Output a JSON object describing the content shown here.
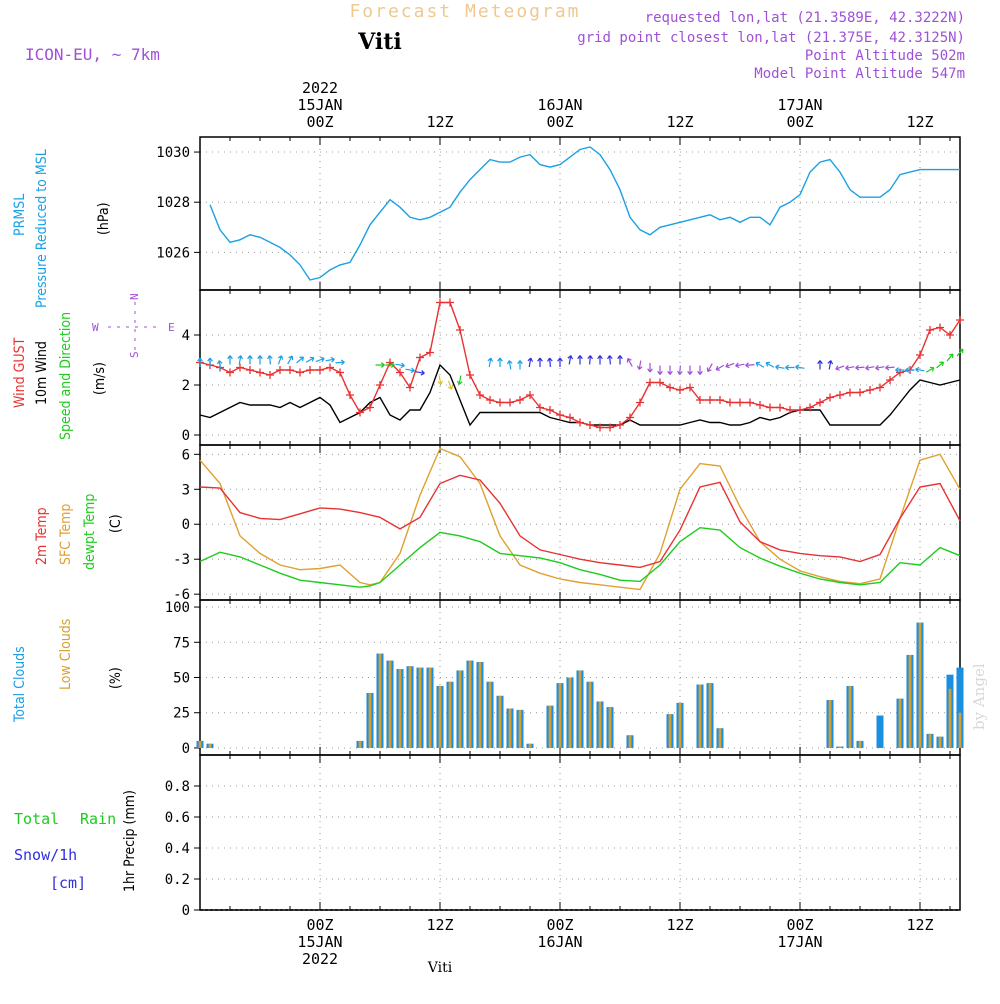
{
  "header": {
    "app_title": "Forecast Meteogram",
    "station": "Viti",
    "model": "ICON-EU, ~ 7km",
    "requested": "requested lon,lat (21.3589E, 42.3222N)",
    "gridpoint": "grid point closest lon,lat (21.375E, 42.3125N)",
    "point_alt": "Point Altitude 502m",
    "model_alt": "Model Point Altitude 547m"
  },
  "footer": {
    "station": "Viti",
    "credit": "by Angel"
  },
  "colors": {
    "pressure": "#1aa0e6",
    "gust": "#e83232",
    "wind": "#000000",
    "wind_label": "#1ecc1e",
    "temp2m": "#e83232",
    "sfc": "#e0a030",
    "dewpt": "#1ecc1e",
    "total_cloud": "#1a8ee0",
    "low_cloud": "#d6a030",
    "rain": "#1ecc1e",
    "snow": "#3030e0",
    "violet": "#a050d8"
  },
  "time_axis": {
    "top_labels": [
      {
        "t": 12,
        "l1": "2022",
        "l2": "15JAN",
        "l3": "00Z"
      },
      {
        "t": 24,
        "l1": "",
        "l2": "",
        "l3": "12Z"
      },
      {
        "t": 36,
        "l1": "",
        "l2": "16JAN",
        "l3": "00Z"
      },
      {
        "t": 48,
        "l1": "",
        "l2": "",
        "l3": "12Z"
      },
      {
        "t": 60,
        "l1": "",
        "l2": "17JAN",
        "l3": "00Z"
      },
      {
        "t": 72,
        "l1": "",
        "l2": "",
        "l3": "12Z"
      }
    ],
    "bottom_labels": [
      {
        "t": 12,
        "l1": "00Z",
        "l2": "15JAN",
        "l3": "2022"
      },
      {
        "t": 24,
        "l1": "12Z",
        "l2": "",
        "l3": ""
      },
      {
        "t": 36,
        "l1": "00Z",
        "l2": "16JAN",
        "l3": ""
      },
      {
        "t": 48,
        "l1": "12Z",
        "l2": "",
        "l3": ""
      },
      {
        "t": 60,
        "l1": "00Z",
        "l2": "17JAN",
        "l3": ""
      },
      {
        "t": 72,
        "l1": "12Z",
        "l2": "",
        "l3": ""
      }
    ]
  },
  "panels": {
    "pressure": {
      "labels": [
        "PRMSL",
        "Pressure Reduced to MSL",
        "(hPa)"
      ],
      "yticks": [
        "1026",
        "1028",
        "1030"
      ]
    },
    "wind": {
      "labels": [
        "Wind GUST",
        "10m Wind",
        "Speed and Direction",
        "(m/s)"
      ],
      "yticks": [
        "0",
        "2",
        "4"
      ],
      "compass": {
        "n": "N",
        "s": "S",
        "w": "W",
        "e": "E"
      }
    },
    "temp": {
      "labels": [
        "2m Temp",
        "SFC Temp",
        "dewpt Temp",
        "(C)"
      ],
      "yticks": [
        "-6",
        "-3",
        "0",
        "3",
        "6"
      ]
    },
    "clouds": {
      "labels": [
        "Total Clouds",
        "Low Clouds",
        "(%)"
      ],
      "yticks": [
        "0",
        "25",
        "50",
        "75",
        "100"
      ]
    },
    "precip": {
      "labels": [
        "Total",
        "Rain",
        "Snow/1h",
        "[cm]",
        "1hr Precip (mm)"
      ],
      "yticks": [
        "0",
        "0.2",
        "0.4",
        "0.6",
        "0.8"
      ]
    }
  },
  "chart_data": [
    {
      "type": "line",
      "name_ref": "pressure",
      "x_hours": [
        1,
        2,
        3,
        4,
        5,
        6,
        7,
        8,
        9,
        10,
        11,
        12,
        13,
        14,
        15,
        16,
        17,
        18,
        19,
        20,
        21,
        22,
        23,
        24,
        25,
        26,
        27,
        28,
        29,
        30,
        31,
        32,
        33,
        34,
        35,
        36,
        37,
        38,
        39,
        40,
        41,
        42,
        43,
        44,
        45,
        46,
        47,
        48,
        49,
        50,
        51,
        52,
        53,
        54,
        55,
        56,
        57,
        58,
        59,
        60,
        61,
        62,
        63,
        64,
        65,
        66,
        67,
        68,
        69,
        70,
        71,
        72,
        73,
        74,
        75,
        76
      ],
      "values": [
        1027.9,
        1026.9,
        1026.4,
        1026.5,
        1026.7,
        1026.6,
        1026.4,
        1026.2,
        1025.9,
        1025.5,
        1024.9,
        1025.0,
        1025.3,
        1025.5,
        1025.6,
        1026.3,
        1027.1,
        1027.6,
        1028.1,
        1027.8,
        1027.4,
        1027.3,
        1027.4,
        1027.6,
        1027.8,
        1028.4,
        1028.9,
        1029.3,
        1029.7,
        1029.6,
        1029.6,
        1029.8,
        1029.9,
        1029.5,
        1029.4,
        1029.5,
        1029.8,
        1030.1,
        1030.2,
        1029.9,
        1029.3,
        1028.5,
        1027.4,
        1026.9,
        1026.7,
        1027.0,
        1027.1,
        1027.2,
        1027.3,
        1027.4,
        1027.5,
        1027.3,
        1027.4,
        1027.2,
        1027.4,
        1027.4,
        1027.1,
        1027.8,
        1028.0,
        1028.3,
        1029.2,
        1029.6,
        1029.7,
        1029.2,
        1028.5,
        1028.2,
        1028.2,
        1028.2,
        1028.5,
        1029.1,
        1029.2,
        1029.3,
        1029.3,
        1029.3,
        1029.3,
        1029.3
      ],
      "ylim": [
        1024.5,
        1030.6
      ]
    },
    {
      "type": "line",
      "name_ref": "wind",
      "x_hours": [
        0,
        1,
        2,
        3,
        4,
        5,
        6,
        7,
        8,
        9,
        10,
        11,
        12,
        13,
        14,
        15,
        16,
        17,
        18,
        19,
        20,
        21,
        22,
        23,
        24,
        25,
        26,
        27,
        28,
        29,
        30,
        31,
        32,
        33,
        34,
        35,
        36,
        37,
        38,
        39,
        40,
        41,
        42,
        43,
        44,
        45,
        46,
        47,
        48,
        49,
        50,
        51,
        52,
        53,
        54,
        55,
        56,
        57,
        58,
        59,
        60,
        61,
        62,
        63,
        64,
        65,
        66,
        67,
        68,
        69,
        70,
        71,
        72,
        73,
        74,
        75,
        76
      ],
      "gust": [
        2.9,
        2.8,
        2.7,
        2.5,
        2.7,
        2.6,
        2.5,
        2.4,
        2.6,
        2.6,
        2.5,
        2.6,
        2.6,
        2.7,
        2.5,
        1.6,
        0.9,
        1.1,
        2.0,
        2.9,
        2.5,
        1.9,
        3.1,
        3.3,
        5.3,
        5.3,
        4.2,
        2.4,
        1.6,
        1.4,
        1.3,
        1.3,
        1.4,
        1.6,
        1.1,
        1.0,
        0.8,
        0.7,
        0.5,
        0.4,
        0.3,
        0.3,
        0.4,
        0.7,
        1.3,
        2.1,
        2.1,
        1.9,
        1.8,
        1.9,
        1.4,
        1.4,
        1.4,
        1.3,
        1.3,
        1.3,
        1.2,
        1.1,
        1.1,
        1.0,
        1.0,
        1.1,
        1.3,
        1.5,
        1.6,
        1.7,
        1.7,
        1.8,
        1.9,
        2.2,
        2.5,
        2.6,
        3.2,
        4.2,
        4.3,
        4.0,
        4.6
      ],
      "speed": [
        0.8,
        0.7,
        0.9,
        1.1,
        1.3,
        1.2,
        1.2,
        1.2,
        1.1,
        1.3,
        1.1,
        1.3,
        1.5,
        1.2,
        0.5,
        0.7,
        0.9,
        1.3,
        1.5,
        0.8,
        0.6,
        1.0,
        1.0,
        1.7,
        2.8,
        2.4,
        1.4,
        0.4,
        0.9,
        0.9,
        0.9,
        0.9,
        0.9,
        0.9,
        0.9,
        0.7,
        0.6,
        0.5,
        0.5,
        0.4,
        0.4,
        0.4,
        0.4,
        0.6,
        0.4,
        0.4,
        0.4,
        0.4,
        0.4,
        0.5,
        0.6,
        0.5,
        0.5,
        0.4,
        0.4,
        0.5,
        0.7,
        0.6,
        0.7,
        0.9,
        1.0,
        1.0,
        1.0,
        0.4,
        0.4,
        0.4,
        0.4,
        0.4,
        0.4,
        0.8,
        1.3,
        1.8,
        2.2,
        2.1,
        2.0,
        2.1,
        2.2
      ],
      "ylim": [
        -0.4,
        5.8
      ]
    },
    {
      "type": "line",
      "name_ref": "temperature",
      "x_hours": [
        0,
        2,
        4,
        6,
        8,
        10,
        12,
        14,
        16,
        17,
        18,
        20,
        22,
        24,
        26,
        28,
        30,
        32,
        34,
        36,
        38,
        40,
        42,
        44,
        46,
        48,
        50,
        52,
        54,
        56,
        58,
        60,
        62,
        64,
        66,
        68,
        70,
        72,
        74,
        76
      ],
      "t2m": [
        3.2,
        3.1,
        1.0,
        0.5,
        0.4,
        0.9,
        1.4,
        1.3,
        1.0,
        0.8,
        0.6,
        -0.4,
        0.6,
        3.5,
        4.2,
        3.8,
        1.8,
        -1.0,
        -2.2,
        -2.6,
        -3.0,
        -3.3,
        -3.5,
        -3.7,
        -3.2,
        -0.5,
        3.2,
        3.6,
        0.2,
        -1.5,
        -2.2,
        -2.5,
        -2.7,
        -2.8,
        -3.2,
        -2.6,
        0.5,
        3.2,
        3.5,
        0.3
      ],
      "sfc": [
        5.5,
        3.5,
        -1.0,
        -2.5,
        -3.5,
        -3.9,
        -3.8,
        -3.5,
        -5.0,
        -5.2,
        -5.0,
        -2.5,
        2.5,
        6.5,
        5.8,
        3.5,
        -1.0,
        -3.5,
        -4.2,
        -4.7,
        -5.0,
        -5.2,
        -5.4,
        -5.6,
        -2.5,
        3.0,
        5.2,
        5.0,
        1.5,
        -1.5,
        -3.0,
        -4.0,
        -4.5,
        -4.9,
        -5.1,
        -4.7,
        0.5,
        5.5,
        6.0,
        3.0
      ],
      "dewpt": [
        -3.2,
        -2.4,
        -2.8,
        -3.5,
        -4.2,
        -4.8,
        -5.0,
        -5.2,
        -5.4,
        -5.3,
        -5.0,
        -3.5,
        -2.0,
        -0.7,
        -1.0,
        -1.5,
        -2.5,
        -2.7,
        -2.9,
        -3.3,
        -3.9,
        -4.3,
        -4.8,
        -4.9,
        -3.5,
        -1.5,
        -0.3,
        -0.5,
        -2.0,
        -2.9,
        -3.6,
        -4.2,
        -4.7,
        -5.0,
        -5.2,
        -5.0,
        -3.3,
        -3.5,
        -2.0,
        -2.7
      ],
      "ylim": [
        -6.5,
        6.8
      ]
    },
    {
      "type": "bar",
      "name_ref": "clouds",
      "x_hours": [
        0,
        1,
        2,
        3,
        4,
        5,
        6,
        7,
        8,
        9,
        10,
        11,
        12,
        13,
        14,
        15,
        16,
        17,
        18,
        19,
        20,
        21,
        22,
        23,
        24,
        25,
        26,
        27,
        28,
        29,
        30,
        31,
        32,
        33,
        34,
        35,
        36,
        37,
        38,
        39,
        40,
        41,
        42,
        43,
        44,
        45,
        46,
        47,
        48,
        49,
        50,
        51,
        52,
        53,
        54,
        55,
        56,
        57,
        58,
        59,
        60,
        61,
        62,
        63,
        64,
        65,
        66,
        67,
        68,
        69,
        70,
        71,
        72,
        73,
        74,
        75,
        76
      ],
      "total": [
        5,
        3,
        0,
        0,
        0,
        0,
        0,
        0,
        0,
        0,
        0,
        0,
        0,
        0,
        0,
        0,
        5,
        39,
        67,
        62,
        56,
        58,
        57,
        57,
        44,
        47,
        55,
        62,
        61,
        47,
        37,
        28,
        27,
        3,
        0,
        30,
        46,
        50,
        55,
        47,
        33,
        29,
        0,
        9,
        0,
        0,
        0,
        24,
        32,
        0,
        45,
        46,
        14,
        0,
        0,
        0,
        0,
        0,
        0,
        0,
        0,
        0,
        0,
        34,
        1,
        44,
        5,
        0,
        23,
        0,
        35,
        66,
        89,
        10,
        8,
        52,
        57
      ],
      "low": [
        5,
        3,
        0,
        0,
        0,
        0,
        0,
        0,
        0,
        0,
        0,
        0,
        0,
        0,
        0,
        0,
        5,
        39,
        67,
        62,
        56,
        58,
        57,
        57,
        44,
        47,
        55,
        62,
        61,
        47,
        37,
        28,
        27,
        3,
        0,
        30,
        46,
        50,
        55,
        47,
        33,
        29,
        0,
        9,
        0,
        0,
        0,
        24,
        32,
        0,
        45,
        46,
        14,
        0,
        0,
        0,
        0,
        0,
        0,
        0,
        0,
        0,
        0,
        34,
        1,
        44,
        5,
        0,
        0,
        0,
        35,
        66,
        89,
        10,
        8,
        42,
        25
      ],
      "ylim": [
        -5,
        105
      ]
    },
    {
      "type": "area",
      "name_ref": "precip",
      "x_hours": [
        0,
        76
      ],
      "values": [
        0,
        0
      ],
      "ylim": [
        0,
        1.0
      ]
    }
  ]
}
